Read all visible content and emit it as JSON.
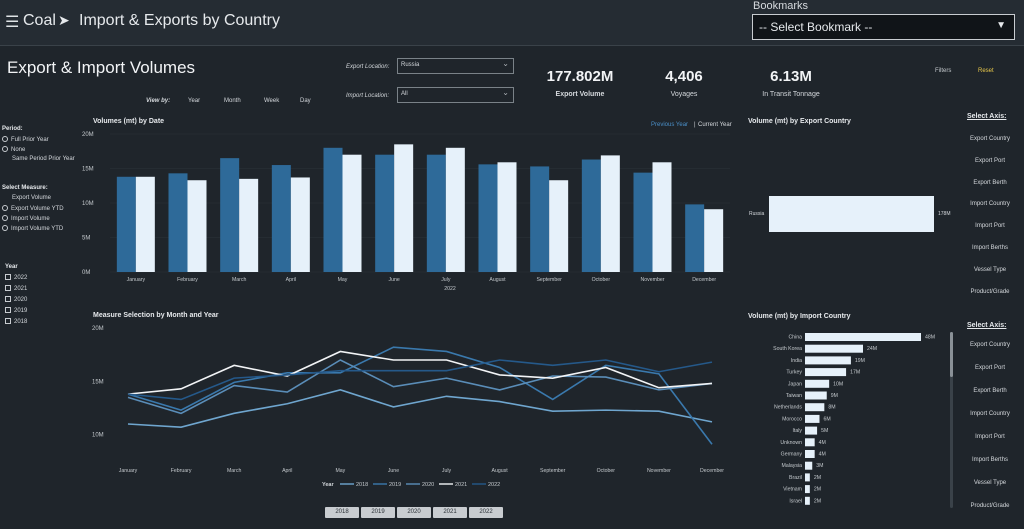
{
  "header": {
    "menu_icon": "hamburger-icon",
    "crumb_root": "Coal",
    "crumb_sep": "➤",
    "crumb_page": "Import & Exports by Country",
    "bookmarks_label": "Bookmarks",
    "bookmark_value": "-- Select Bookmark --",
    "bookmark_caret": "▼"
  },
  "page_title": "Export & Import Volumes",
  "filters": {
    "export_location_label": "Export Location:",
    "export_location_value": "Russia",
    "import_location_label": "Import Location:",
    "import_location_value": "All",
    "caret": "⌄"
  },
  "kpis": [
    {
      "value": "177.802M",
      "label": "Export Volume"
    },
    {
      "value": "4,406",
      "label": "Voyages"
    },
    {
      "value": "6.13M",
      "label": "In Transit Tonnage"
    }
  ],
  "actions": {
    "filters": "Filters",
    "reset": "Reset"
  },
  "view_by": {
    "label": "View by:",
    "options": [
      "Year",
      "Month",
      "Week",
      "Day"
    ]
  },
  "left_panel": {
    "period_label": "Period:",
    "period_options": [
      "Full Prior Year",
      "None",
      "Same Period Prior Year"
    ],
    "measure_label": "Select Measure:",
    "measure_options": [
      "Export Volume",
      "Export Volume YTD",
      "Import Volume",
      "Import Volume YTD"
    ],
    "year_label": "Year",
    "years": [
      "2022",
      "2021",
      "2020",
      "2019",
      "2018"
    ]
  },
  "chart_data": [
    {
      "type": "bar",
      "title": "Volumes (mt) by Date",
      "xlabel": "2022",
      "categories": [
        "January",
        "February",
        "March",
        "April",
        "May",
        "June",
        "July",
        "August",
        "September",
        "October",
        "November",
        "December"
      ],
      "series": [
        {
          "name": "Previous Year",
          "color": "#2e6a99",
          "values": [
            13.8,
            14.3,
            16.5,
            15.5,
            18.0,
            17.0,
            17.0,
            15.6,
            15.3,
            16.3,
            14.4,
            9.8
          ]
        },
        {
          "name": "Current Year",
          "color": "#e6f1fa",
          "values": [
            13.8,
            13.3,
            13.5,
            13.7,
            17.0,
            18.5,
            18.0,
            15.9,
            13.3,
            16.9,
            15.9,
            9.1
          ]
        }
      ],
      "yticks": [
        "0M",
        "5M",
        "10M",
        "15M",
        "20M"
      ],
      "ylim": [
        0,
        20
      ],
      "legend": {
        "previous": "Previous Year",
        "sep": "|",
        "current": "Current Year"
      }
    },
    {
      "type": "line",
      "title": "Measure Selection by Month and Year",
      "categories": [
        "January",
        "February",
        "March",
        "April",
        "May",
        "June",
        "July",
        "August",
        "September",
        "October",
        "November",
        "December"
      ],
      "yticks": [
        "10M",
        "15M",
        "20M"
      ],
      "ylim": [
        8,
        20
      ],
      "legend_title": "Year",
      "series": [
        {
          "name": "2018",
          "color": "#6fa6cf",
          "values": [
            11.0,
            10.7,
            12.0,
            12.9,
            14.2,
            12.6,
            13.6,
            13.1,
            12.2,
            12.3,
            12.2,
            11.2
          ]
        },
        {
          "name": "2019",
          "color": "#3a79ad",
          "values": [
            13.8,
            12.3,
            14.9,
            15.8,
            15.8,
            18.2,
            17.8,
            16.3,
            13.3,
            16.5,
            15.7,
            9.1
          ]
        },
        {
          "name": "2020",
          "color": "#5a8db8",
          "values": [
            13.5,
            12.0,
            14.6,
            14.0,
            17.0,
            14.5,
            15.3,
            14.2,
            15.5,
            15.4,
            14.2,
            14.8
          ]
        },
        {
          "name": "2021",
          "color": "#f2f4f6",
          "values": [
            13.8,
            14.3,
            16.5,
            15.5,
            17.8,
            17.0,
            17.0,
            15.6,
            15.3,
            16.3,
            14.4,
            14.8
          ]
        },
        {
          "name": "2022",
          "color": "#25598a",
          "values": [
            13.8,
            13.3,
            15.3,
            15.6,
            16.0,
            16.0,
            16.0,
            17.0,
            16.5,
            17.0,
            15.9,
            16.8
          ]
        }
      ]
    },
    {
      "type": "bar",
      "title": "Volume (mt) by Export Country",
      "categories": [
        "Russia"
      ],
      "values": [
        178
      ],
      "value_labels": [
        "178M"
      ]
    },
    {
      "type": "bar",
      "title": "Volume (mt) by Import Country",
      "categories": [
        "China",
        "South Korea",
        "India",
        "Turkey",
        "Japan",
        "Taiwan",
        "Netherlands",
        "Morocco",
        "Italy",
        "Unknown",
        "Germany",
        "Malaysia",
        "Brazil",
        "Vietnam",
        "Israel"
      ],
      "values": [
        48,
        24,
        19,
        17,
        10,
        9,
        8,
        6,
        5,
        4,
        4,
        3,
        2,
        2,
        2
      ],
      "value_labels": [
        "48M",
        "24M",
        "19M",
        "17M",
        "10M",
        "9M",
        "8M",
        "6M",
        "5M",
        "4M",
        "4M",
        "3M",
        "2M",
        "2M",
        "2M"
      ]
    }
  ],
  "select_axis": {
    "label": "Select Axis:",
    "export_items": [
      "Export Country",
      "Export Port",
      "Export Berth",
      "Import Country",
      "Import Port",
      "Import Berths",
      "Vessel Type",
      "Product/Grade"
    ],
    "import_items": [
      "Export Country",
      "Export Port",
      "Export Berth",
      "Import Country",
      "Import Port",
      "Import Berths",
      "Vessel Type",
      "Product/Grade"
    ]
  },
  "year_buttons": [
    "2018",
    "2019",
    "2020",
    "2021",
    "2022"
  ]
}
